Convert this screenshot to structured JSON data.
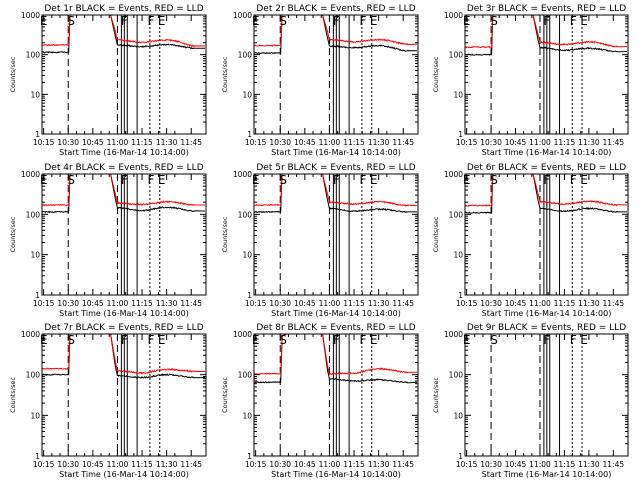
{
  "colors": {
    "events": "#000000",
    "lld": "#ff0000",
    "background": "#ffffff"
  },
  "chart_data": [
    {
      "type": "line",
      "title": "Det 1r BLACK = Events, RED = LLD",
      "xlabel": "Start Time (16-Mar-14 10:14:00)",
      "ylabel": "Counts/sec",
      "yscale": "log",
      "ylim": [
        1,
        1000
      ],
      "xticks": [
        "10:15",
        "10:30",
        "10:45",
        "11:00",
        "11:15",
        "11:30",
        "11:45"
      ],
      "yticks": [
        "1",
        "10",
        "100",
        "1000"
      ],
      "markers": [
        "E",
        "S",
        "F",
        "F",
        "E"
      ],
      "has_data": true,
      "gap_before": 140,
      "gap_after": 220,
      "series": [
        {
          "name": "BLACK = Events",
          "color": "#000000",
          "pre": 115,
          "post": [
            [
              11.0,
              175
            ],
            [
              11.25,
              160
            ],
            [
              11.5,
              180
            ],
            [
              11.8,
              145
            ]
          ]
        },
        {
          "name": "RED = LLD",
          "color": "#ff0000",
          "pre": 175,
          "post": [
            [
              11.0,
              235
            ],
            [
              11.25,
              205
            ],
            [
              11.5,
              235
            ],
            [
              11.8,
              165
            ]
          ]
        }
      ]
    },
    {
      "type": "line",
      "title": "Det 2r BLACK = Events, RED = LLD",
      "xlabel": "Start Time (16-Mar-14 10:14:00)",
      "ylabel": "Counts/sec",
      "yscale": "log",
      "ylim": [
        1,
        1000
      ],
      "xticks": [
        "10:15",
        "10:30",
        "10:45",
        "11:00",
        "11:15",
        "11:30",
        "11:45"
      ],
      "yticks": [
        "1",
        "10",
        "100",
        "1000"
      ],
      "markers": [
        "E",
        "S",
        "F",
        "F",
        "E"
      ],
      "has_data": true,
      "gap_before": 140,
      "gap_after": 220,
      "series": [
        {
          "name": "BLACK = Events",
          "color": "#000000",
          "pre": 110,
          "post": [
            [
              11.0,
              165
            ],
            [
              11.25,
              150
            ],
            [
              11.5,
              170
            ],
            [
              11.8,
              125
            ]
          ]
        },
        {
          "name": "RED = LLD",
          "color": "#ff0000",
          "pre": 170,
          "post": [
            [
              11.0,
              240
            ],
            [
              11.25,
              210
            ],
            [
              11.5,
              240
            ],
            [
              11.8,
              185
            ]
          ]
        }
      ]
    },
    {
      "type": "line",
      "title": "Det 3r BLACK = Events, RED = LLD",
      "xlabel": "Start Time (16-Mar-14 10:14:00)",
      "ylabel": "Counts/sec",
      "yscale": "log",
      "ylim": [
        1,
        1000
      ],
      "xticks": [
        "10:15",
        "10:30",
        "10:45",
        "11:00",
        "11:15",
        "11:30",
        "11:45"
      ],
      "yticks": [
        "1",
        "10",
        "100",
        "1000"
      ],
      "markers": [
        "E",
        "S",
        "F",
        "F",
        "E"
      ],
      "has_data": true,
      "gap_before": 140,
      "gap_after": 220,
      "series": [
        {
          "name": "BLACK = Events",
          "color": "#000000",
          "pre": 100,
          "post": [
            [
              11.0,
              150
            ],
            [
              11.25,
              130
            ],
            [
              11.5,
              145
            ],
            [
              11.8,
              120
            ]
          ]
        },
        {
          "name": "RED = LLD",
          "color": "#ff0000",
          "pre": 155,
          "post": [
            [
              11.0,
              205
            ],
            [
              11.25,
              180
            ],
            [
              11.5,
              210
            ],
            [
              11.8,
              160
            ]
          ]
        }
      ]
    },
    {
      "type": "line",
      "title": "Det 4r BLACK = Events, RED = LLD",
      "xlabel": "Start Time (16-Mar-14 10:14:00)",
      "ylabel": "Counts/sec",
      "yscale": "log",
      "ylim": [
        1,
        1000
      ],
      "xticks": [
        "10:15",
        "10:30",
        "10:45",
        "11:00",
        "11:15",
        "11:30",
        "11:45"
      ],
      "yticks": [
        "1",
        "10",
        "100",
        "1000"
      ],
      "markers": [
        "E",
        "S",
        "F",
        "F",
        "E"
      ],
      "has_data": true,
      "gap_before": 140,
      "gap_after": 220,
      "series": [
        {
          "name": "BLACK = Events",
          "color": "#000000",
          "pre": 115,
          "post": [
            [
              11.0,
              145
            ],
            [
              11.25,
              125
            ],
            [
              11.5,
              150
            ],
            [
              11.8,
              120
            ]
          ]
        },
        {
          "name": "RED = LLD",
          "color": "#ff0000",
          "pre": 170,
          "post": [
            [
              11.0,
              190
            ],
            [
              11.25,
              175
            ],
            [
              11.5,
              205
            ],
            [
              11.8,
              170
            ]
          ]
        }
      ]
    },
    {
      "type": "line",
      "title": "Det 5r BLACK = Events, RED = LLD",
      "xlabel": "Start Time (16-Mar-14 10:14:00)",
      "ylabel": "Counts/sec",
      "yscale": "log",
      "ylim": [
        1,
        1000
      ],
      "xticks": [
        "10:15",
        "10:30",
        "10:45",
        "11:00",
        "11:15",
        "11:30",
        "11:45"
      ],
      "yticks": [
        "1",
        "10",
        "100",
        "1000"
      ],
      "markers": [
        "E",
        "S",
        "F",
        "F",
        "E"
      ],
      "has_data": true,
      "gap_before": 140,
      "gap_after": 220,
      "series": [
        {
          "name": "BLACK = Events",
          "color": "#000000",
          "pre": 115,
          "post": [
            [
              11.0,
              140
            ],
            [
              11.25,
              120
            ],
            [
              11.5,
              135
            ],
            [
              11.8,
              115
            ]
          ]
        },
        {
          "name": "RED = LLD",
          "color": "#ff0000",
          "pre": 170,
          "post": [
            [
              11.0,
              200
            ],
            [
              11.25,
              180
            ],
            [
              11.5,
              205
            ],
            [
              11.8,
              165
            ]
          ]
        }
      ]
    },
    {
      "type": "line",
      "title": "Det 6r BLACK = Events, RED = LLD",
      "xlabel": "Start Time (16-Mar-14 10:14:00)",
      "ylabel": "Counts/sec",
      "yscale": "log",
      "ylim": [
        1,
        1000
      ],
      "xticks": [
        "10:15",
        "10:30",
        "10:45",
        "11:00",
        "11:15",
        "11:30",
        "11:45"
      ],
      "yticks": [
        "1",
        "10",
        "100",
        "1000"
      ],
      "markers": [
        "E",
        "S",
        "F",
        "F",
        "E"
      ],
      "has_data": true,
      "gap_before": 140,
      "gap_after": 220,
      "series": [
        {
          "name": "BLACK = Events",
          "color": "#000000",
          "pre": 110,
          "post": [
            [
              11.0,
              140
            ],
            [
              11.25,
              120
            ],
            [
              11.5,
              140
            ],
            [
              11.8,
              115
            ]
          ]
        },
        {
          "name": "RED = LLD",
          "color": "#ff0000",
          "pre": 165,
          "post": [
            [
              11.0,
              205
            ],
            [
              11.25,
              180
            ],
            [
              11.5,
              210
            ],
            [
              11.8,
              170
            ]
          ]
        }
      ]
    },
    {
      "type": "line",
      "title": "Det 7r BLACK = Events, RED = LLD",
      "xlabel": "Start Time (16-Mar-14 10:14:00)",
      "ylabel": "Counts/sec",
      "yscale": "log",
      "ylim": [
        1,
        1000
      ],
      "xticks": [
        "10:15",
        "10:30",
        "10:45",
        "11:00",
        "11:15",
        "11:30",
        "11:45"
      ],
      "yticks": [
        "1",
        "10",
        "100",
        "1000"
      ],
      "markers": [
        "E",
        "S",
        "F",
        "F",
        "E"
      ],
      "has_data": true,
      "gap_before": 140,
      "gap_after": 220,
      "series": [
        {
          "name": "BLACK = Events",
          "color": "#000000",
          "pre": 100,
          "post": [
            [
              11.0,
              95
            ],
            [
              11.25,
              85
            ],
            [
              11.5,
              100
            ],
            [
              11.8,
              85
            ]
          ]
        },
        {
          "name": "RED = LLD",
          "color": "#ff0000",
          "pre": 140,
          "post": [
            [
              11.0,
              125
            ],
            [
              11.25,
              110
            ],
            [
              11.5,
              135
            ],
            [
              11.8,
              120
            ]
          ]
        }
      ]
    },
    {
      "type": "line",
      "title": "Det 8r BLACK = Events, RED = LLD",
      "xlabel": "Start Time (16-Mar-14 10:14:00)",
      "ylabel": "Counts/sec",
      "yscale": "log",
      "ylim": [
        1,
        1000
      ],
      "xticks": [
        "10:15",
        "10:30",
        "10:45",
        "11:00",
        "11:15",
        "11:30",
        "11:45"
      ],
      "yticks": [
        "1",
        "10",
        "100",
        "1000"
      ],
      "markers": [
        "E",
        "S",
        "F",
        "F",
        "E"
      ],
      "has_data": true,
      "gap_before": 90,
      "gap_after": 220,
      "series": [
        {
          "name": "BLACK = Events",
          "color": "#000000",
          "pre": 65,
          "post": [
            [
              11.0,
              80
            ],
            [
              11.25,
              70
            ],
            [
              11.5,
              75
            ],
            [
              11.8,
              65
            ]
          ]
        },
        {
          "name": "RED = LLD",
          "color": "#ff0000",
          "pre": 105,
          "post": [
            [
              11.0,
              105
            ],
            [
              11.25,
              110
            ],
            [
              11.5,
              140
            ],
            [
              11.8,
              115
            ]
          ]
        }
      ]
    },
    {
      "type": "line",
      "title": "Det 9r BLACK = Events, RED = LLD",
      "xlabel": "Start Time (16-Mar-14 10:14:00)",
      "ylabel": "Counts/sec",
      "yscale": "log",
      "ylim": [
        1,
        1000
      ],
      "xticks": [
        "10:15",
        "10:30",
        "10:45",
        "11:00",
        "11:15",
        "11:30",
        "11:45"
      ],
      "yticks": [
        "1",
        "10",
        "100",
        "1000"
      ],
      "markers": [
        "E",
        "S",
        "F",
        "F",
        "E"
      ],
      "has_data": false,
      "series": []
    }
  ]
}
